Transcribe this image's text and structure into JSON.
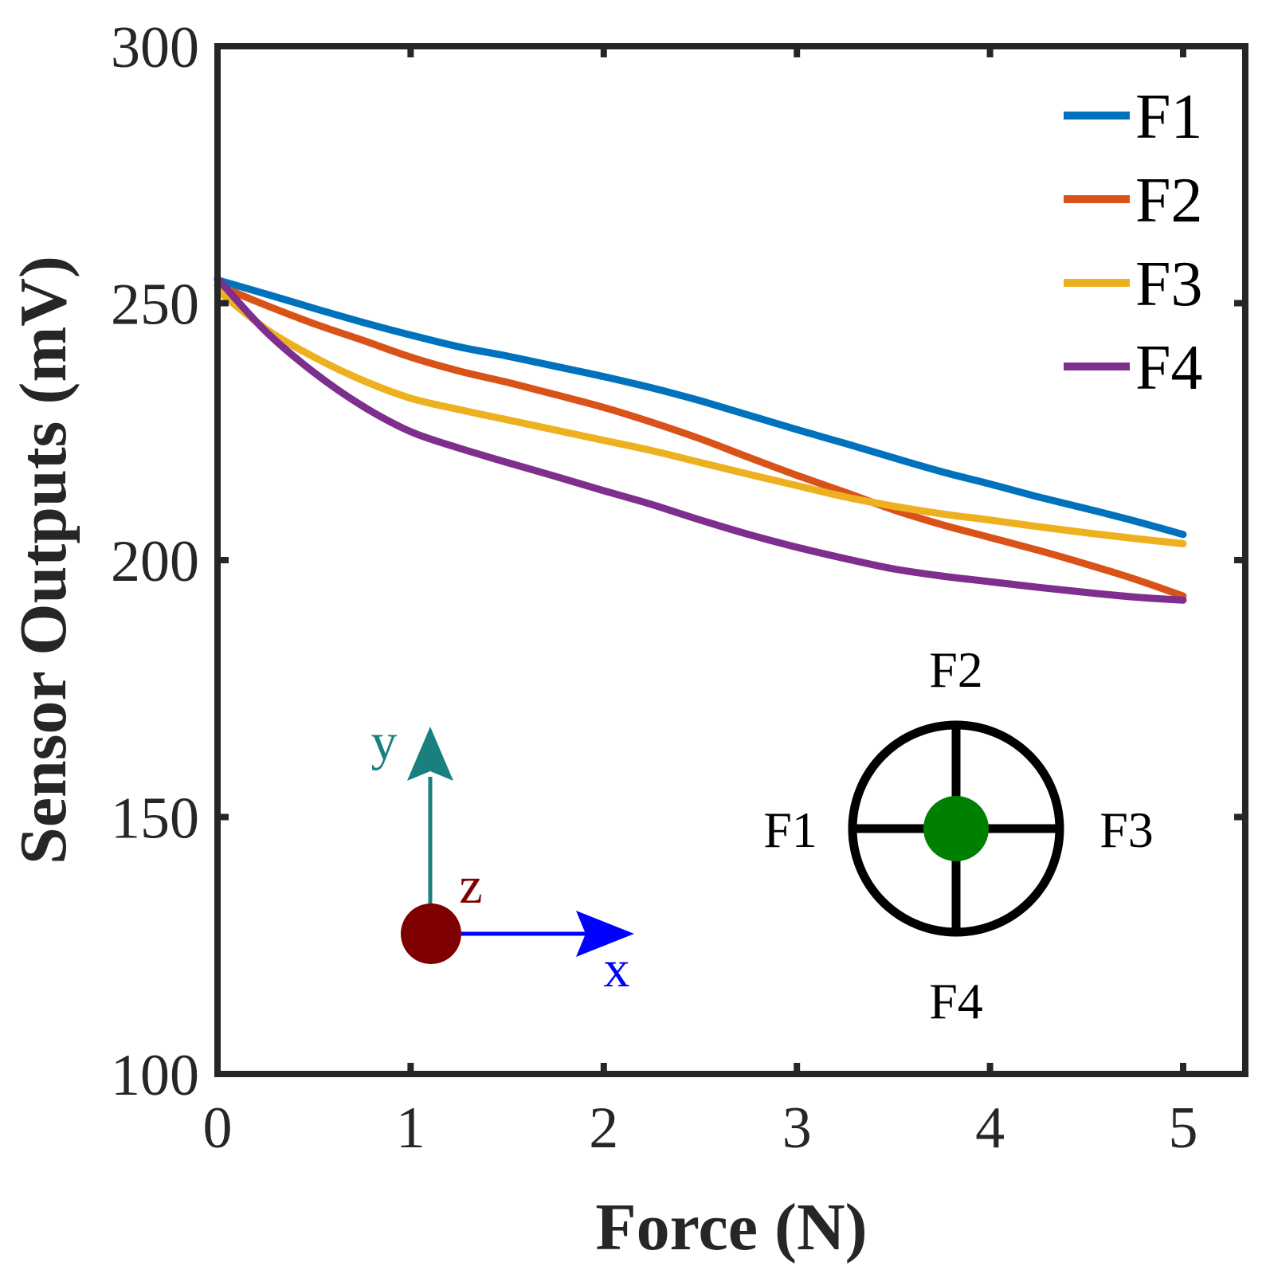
{
  "chart_data": {
    "type": "line",
    "title": "",
    "xlabel": "Force (N)",
    "ylabel": "Sensor Outputs (mV)",
    "xlim": [
      0,
      5
    ],
    "ylim": [
      100,
      300
    ],
    "xticks": [
      "0",
      "1",
      "2",
      "3",
      "4",
      "5"
    ],
    "yticks": [
      "100",
      "150",
      "200",
      "250",
      "300"
    ],
    "grid": false,
    "legend_position": "top-right",
    "series": [
      {
        "name": "F1",
        "color": "#0072BD",
        "x": [
          0,
          0.25,
          0.5,
          0.75,
          1.0,
          1.25,
          1.5,
          1.75,
          2.0,
          2.25,
          2.5,
          2.75,
          3.0,
          3.25,
          3.5,
          3.75,
          4.0,
          4.25,
          4.5,
          4.75,
          5.0
        ],
        "y": [
          254.5,
          251.8,
          249.0,
          246.3,
          243.8,
          241.5,
          239.7,
          237.7,
          235.7,
          233.5,
          231.0,
          228.2,
          225.4,
          222.7,
          219.9,
          217.2,
          214.8,
          212.3,
          210.0,
          207.6,
          205.0
        ]
      },
      {
        "name": "F2",
        "color": "#D95319",
        "x": [
          0,
          0.25,
          0.5,
          0.75,
          1.0,
          1.25,
          1.5,
          1.75,
          2.0,
          2.25,
          2.5,
          2.75,
          3.0,
          3.25,
          3.5,
          3.75,
          4.0,
          4.25,
          4.5,
          4.75,
          5.0
        ],
        "y": [
          253.5,
          249.6,
          246.0,
          242.8,
          239.5,
          236.8,
          234.6,
          232.2,
          229.7,
          226.8,
          223.6,
          220.0,
          216.5,
          213.2,
          209.8,
          206.9,
          204.4,
          201.9,
          199.2,
          196.3,
          193.0
        ]
      },
      {
        "name": "F3",
        "color": "#EDB120",
        "x": [
          0,
          0.25,
          0.5,
          0.75,
          1.0,
          1.25,
          1.5,
          1.75,
          2.0,
          2.25,
          2.5,
          2.75,
          3.0,
          3.25,
          3.5,
          3.75,
          4.0,
          4.25,
          4.5,
          4.75,
          5.0
        ],
        "y": [
          252.5,
          245.0,
          239.5,
          235.0,
          231.5,
          229.3,
          227.3,
          225.3,
          223.3,
          221.3,
          219.0,
          216.7,
          214.5,
          212.3,
          210.5,
          209.0,
          207.8,
          206.5,
          205.3,
          204.2,
          203.2
        ]
      },
      {
        "name": "F4",
        "color": "#7E2F8E",
        "x": [
          0,
          0.25,
          0.5,
          0.75,
          1.0,
          1.25,
          1.5,
          1.75,
          2.0,
          2.25,
          2.5,
          2.75,
          3.0,
          3.25,
          3.5,
          3.75,
          4.0,
          4.25,
          4.5,
          4.75,
          5.0
        ],
        "y": [
          254.8,
          244.5,
          236.5,
          230.0,
          225.0,
          221.8,
          219.0,
          216.3,
          213.5,
          210.8,
          207.8,
          205.0,
          202.5,
          200.3,
          198.3,
          196.9,
          195.8,
          194.7,
          193.7,
          192.8,
          192.2
        ]
      }
    ]
  },
  "annotations": {
    "coord_axes": {
      "y_label": "y",
      "z_label": "z",
      "x_label": "x",
      "y_color": "#1A7F7F",
      "z_color": "#7F0000",
      "x_color": "#0000FF"
    },
    "sensor_diagram": {
      "top": "F2",
      "left": "F1",
      "right": "F3",
      "bottom": "F4",
      "center_color": "#008000"
    }
  }
}
